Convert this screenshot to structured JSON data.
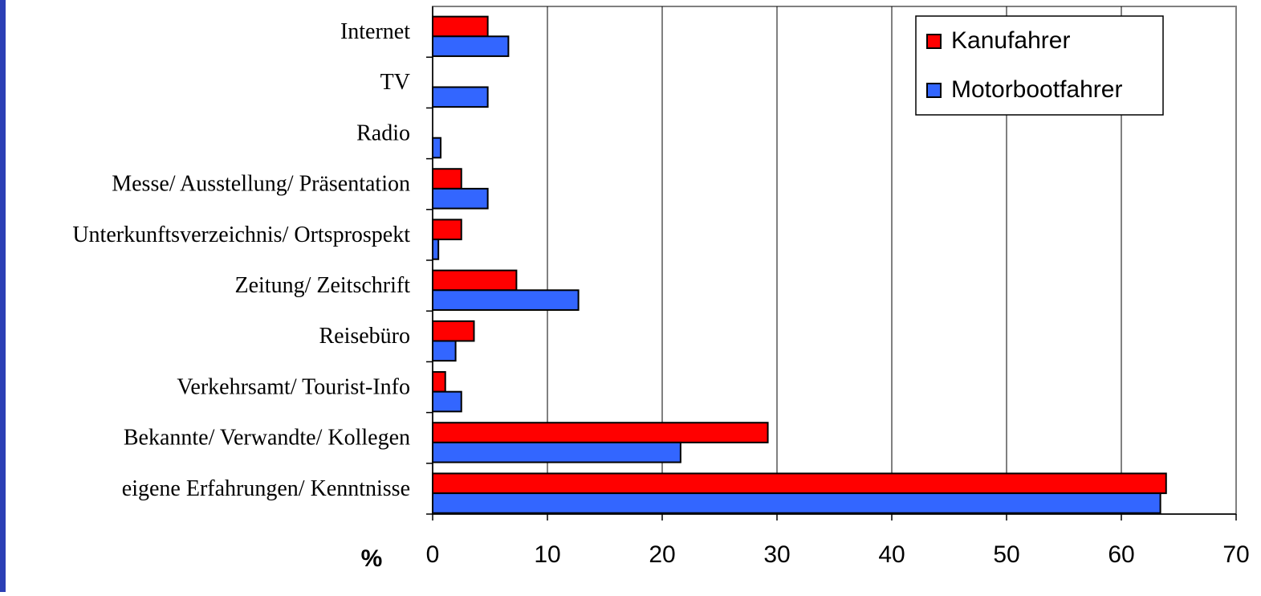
{
  "chart_data": {
    "type": "bar",
    "orientation": "horizontal",
    "x_label": "%",
    "categories": [
      "Internet",
      "TV",
      "Radio",
      "Messe/ Ausstellung/ Präsentation",
      "Unterkunftsverzeichnis/ Ortsprospekt",
      "Zeitung/ Zeitschrift",
      "Reisebüro",
      "Verkehrsamt/ Tourist-Info",
      "Bekannte/ Verwandte/ Kollegen",
      "eigene Erfahrungen/ Kenntnisse"
    ],
    "series": [
      {
        "name": "Kanufahrer",
        "color": "#ff0000",
        "values": [
          4.8,
          0,
          0,
          2.5,
          2.5,
          7.3,
          3.6,
          1.1,
          29.2,
          63.9
        ]
      },
      {
        "name": "Motorbootfahrer",
        "color": "#3366ff",
        "values": [
          6.6,
          4.8,
          0.7,
          4.8,
          0.5,
          12.7,
          2.0,
          2.5,
          21.6,
          63.4
        ]
      }
    ],
    "xlim": [
      0,
      70
    ],
    "xticks": [
      0,
      10,
      20,
      30,
      40,
      50,
      60,
      70
    ],
    "grid": true,
    "legend": "upper right"
  }
}
